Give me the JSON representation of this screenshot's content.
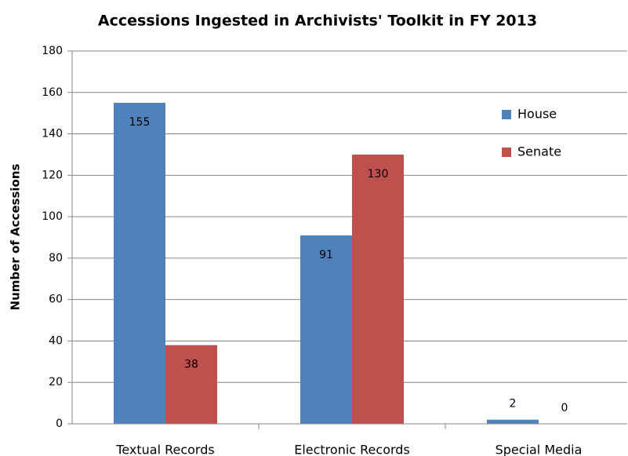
{
  "chart_data": {
    "type": "bar",
    "title": "Accessions Ingested in Archivists' Toolkit in FY 2013",
    "y_label": "Number of Accessions",
    "categories": [
      "Textual Records",
      "Electronic Records",
      "Special Media"
    ],
    "series": [
      {
        "name": "House",
        "color": "#4f81bd",
        "values": [
          155,
          91,
          2
        ]
      },
      {
        "name": "Senate",
        "color": "#c0504d",
        "values": [
          38,
          130,
          0
        ]
      }
    ],
    "ylim": [
      0,
      180
    ],
    "yticks": [
      0,
      20,
      40,
      60,
      80,
      100,
      120,
      140,
      160,
      180
    ],
    "grid": true,
    "legend": "upper right",
    "data_labels": true
  }
}
